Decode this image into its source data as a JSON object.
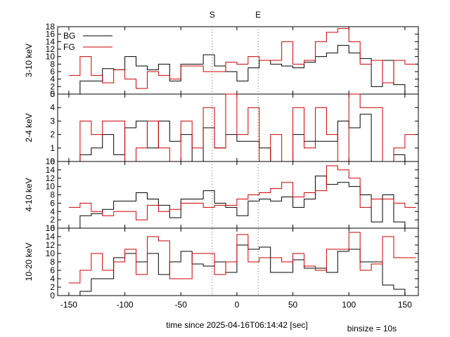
{
  "chart_data": {
    "type": "line",
    "xlabel": "time since 2025-04-16T06:14:42 [sec]",
    "binsize_label": "binsize = 10s",
    "xlim": [
      -160,
      162
    ],
    "x_ticks": [
      -150,
      -100,
      -50,
      0,
      50,
      100,
      150
    ],
    "markers": [
      {
        "label": "S",
        "x": -22
      },
      {
        "label": "E",
        "x": 19
      }
    ],
    "legend": {
      "placement": "top-left",
      "entries": [
        {
          "name": "BG",
          "color": "#000000"
        },
        {
          "name": "FG",
          "color": "#cc0000"
        }
      ]
    },
    "panels": [
      {
        "ylabel": "3-10 keV",
        "ylim": [
          0,
          18
        ],
        "y_ticks": [
          0,
          2,
          4,
          6,
          8,
          10,
          12,
          14,
          16,
          18
        ],
        "bin_edges": [
          -150,
          -140,
          -130,
          -120,
          -110,
          -100,
          -90,
          -80,
          -70,
          -60,
          -50,
          -40,
          -30,
          -20,
          -10,
          0,
          10,
          20,
          30,
          40,
          50,
          60,
          70,
          80,
          90,
          100,
          110,
          120,
          130,
          140,
          150,
          160
        ],
        "series": [
          {
            "name": "BG",
            "color": "#000000",
            "values": [
              0,
              3.5,
              3.5,
              6.8,
              6.5,
              10,
              7.5,
              6.5,
              8,
              3.5,
              8,
              8,
              10.5,
              7.5,
              6,
              3.5,
              7,
              9,
              8,
              7.5,
              7,
              8.5,
              10,
              11,
              13,
              11,
              9.5,
              2,
              9,
              2.5,
              0
            ]
          },
          {
            "name": "FG",
            "color": "#cc0000",
            "values": [
              5,
              10,
              5,
              3,
              6.5,
              4,
              1.5,
              6,
              5,
              4,
              7.5,
              7.5,
              6,
              6,
              8.5,
              8,
              10,
              9,
              9,
              14,
              8,
              9,
              14,
              16.5,
              17.5,
              14,
              8,
              9,
              3,
              9,
              8
            ]
          }
        ]
      },
      {
        "ylabel": "2-4 keV",
        "ylim": [
          0,
          5
        ],
        "y_ticks": [
          0,
          1,
          2,
          3,
          4,
          5
        ],
        "bin_edges": [
          -150,
          -140,
          -130,
          -120,
          -110,
          -100,
          -90,
          -80,
          -70,
          -60,
          -50,
          -40,
          -30,
          -20,
          -10,
          0,
          10,
          20,
          30,
          40,
          50,
          60,
          70,
          80,
          90,
          100,
          110,
          120,
          130,
          140,
          150,
          160
        ],
        "series": [
          {
            "name": "BG",
            "color": "#000000",
            "values": [
              0,
              0.5,
              1,
              2,
              0.5,
              2.5,
              3,
              1,
              3,
              1.5,
              2,
              0,
              2.5,
              1,
              2,
              1.5,
              1.5,
              1,
              0,
              0,
              2,
              1.5,
              1.5,
              1.5,
              3,
              2.5,
              3.5,
              0,
              0,
              0.5,
              0
            ]
          },
          {
            "name": "FG",
            "color": "#cc0000",
            "values": [
              0,
              3,
              2,
              3,
              3,
              0,
              1,
              3,
              1,
              0,
              3,
              1,
              4,
              1,
              5,
              2,
              4,
              0,
              2,
              0,
              4,
              1,
              4,
              2,
              0,
              5,
              4,
              4,
              0,
              1,
              2
            ]
          }
        ]
      },
      {
        "ylabel": "4-10 keV",
        "ylim": [
          0,
          16
        ],
        "y_ticks": [
          0,
          2,
          4,
          6,
          8,
          10,
          12,
          14,
          16
        ],
        "bin_edges": [
          -150,
          -140,
          -130,
          -120,
          -110,
          -100,
          -90,
          -80,
          -70,
          -60,
          -50,
          -40,
          -30,
          -20,
          -10,
          0,
          10,
          20,
          30,
          40,
          50,
          60,
          70,
          80,
          90,
          100,
          110,
          120,
          130,
          140,
          150,
          160
        ],
        "series": [
          {
            "name": "BG",
            "color": "#000000",
            "values": [
              0,
              3,
              3.5,
              4.5,
              6.5,
              6.5,
              8.5,
              7,
              5.5,
              2.5,
              7,
              7,
              9,
              6,
              5,
              3,
              6.5,
              7,
              6.5,
              7.5,
              5,
              7,
              12.5,
              10.5,
              11,
              10,
              8,
              1.5,
              8,
              1.5,
              0
            ]
          },
          {
            "name": "FG",
            "color": "#cc0000",
            "values": [
              5,
              6,
              4,
              3,
              4,
              4,
              2,
              5.5,
              4,
              4.5,
              6,
              6,
              5,
              5.5,
              5.5,
              7,
              8,
              8.5,
              9.5,
              11,
              7.5,
              8.5,
              9,
              15,
              14,
              12,
              5,
              7,
              7,
              6,
              5
            ]
          }
        ]
      },
      {
        "ylabel": "10-20 keV",
        "ylim": [
          0,
          16
        ],
        "y_ticks": [
          0,
          2,
          4,
          6,
          8,
          10,
          12,
          14,
          16
        ],
        "bin_edges": [
          -150,
          -140,
          -130,
          -120,
          -110,
          -100,
          -90,
          -80,
          -70,
          -60,
          -50,
          -40,
          -30,
          -20,
          -10,
          0,
          10,
          20,
          30,
          40,
          50,
          60,
          70,
          80,
          90,
          100,
          110,
          120,
          130,
          140,
          150,
          160
        ],
        "series": [
          {
            "name": "BG",
            "color": "#000000",
            "values": [
              0,
              1,
              4,
              4,
              9,
              10,
              8,
              10,
              5,
              8,
              10.5,
              7.5,
              7,
              8,
              5.5,
              12,
              11,
              11.5,
              5.5,
              5.5,
              8.5,
              6.5,
              6.5,
              5.5,
              10.5,
              11,
              8,
              8,
              2.5,
              1.5,
              0
            ]
          },
          {
            "name": "FG",
            "color": "#cc0000",
            "values": [
              3,
              6,
              10,
              6,
              8,
              11,
              5,
              14,
              13,
              4,
              4,
              10,
              10,
              5,
              8,
              14.5,
              8,
              9,
              9,
              8,
              10,
              7,
              6,
              11,
              11,
              15,
              6,
              7.5,
              14,
              9,
              9
            ]
          }
        ]
      }
    ]
  }
}
